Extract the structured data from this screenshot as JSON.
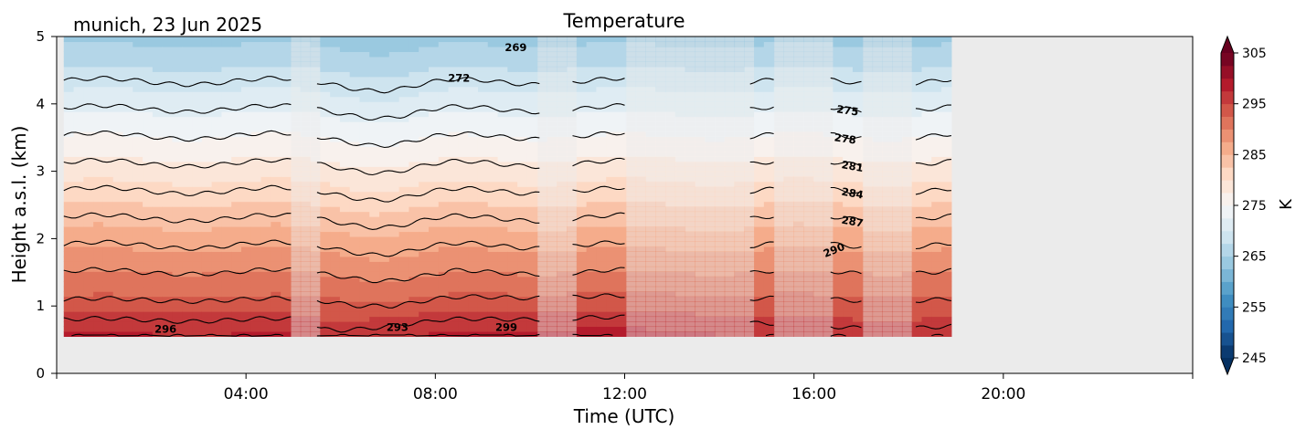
{
  "chart_data": {
    "type": "heatmap",
    "title": "Temperature",
    "subtitle": "munich, 23 Jun 2025",
    "xlabel": "Time (UTC)",
    "ylabel": "Height a.s.l. (km)",
    "xlim_hours": [
      0,
      24
    ],
    "ylim": [
      0,
      5
    ],
    "x_ticks": [
      {
        "value": 4,
        "label": "04:00"
      },
      {
        "value": 8,
        "label": "08:00"
      },
      {
        "value": 12,
        "label": "12:00"
      },
      {
        "value": 16,
        "label": "16:00"
      },
      {
        "value": 20,
        "label": "20:00"
      }
    ],
    "y_ticks": [
      0,
      1,
      2,
      3,
      4,
      5
    ],
    "data_height_range_km": [
      0.55,
      5.0
    ],
    "data_time_range_hours": [
      0.15,
      18.9
    ],
    "missing_color": "#ebebeb",
    "colorbar": {
      "label": "K",
      "range": [
        245,
        305
      ],
      "step": 2.5,
      "ticks": [
        245,
        255,
        265,
        275,
        285,
        295,
        305
      ],
      "colormap": "RdBu_r",
      "extend": "both"
    },
    "full_data_periods_hours": [
      [
        0.15,
        4.95
      ],
      [
        5.5,
        10.2
      ],
      [
        10.9,
        12.0
      ],
      [
        14.65,
        15.15
      ],
      [
        16.35,
        17.0
      ],
      [
        18.15,
        18.9
      ]
    ],
    "surface_temperature_K": 297,
    "lapse_rate_K_per_km": 7.4,
    "contour_interval_K": 3,
    "contour_labels": [
      {
        "value": 296,
        "time": 2.3,
        "height": 0.6,
        "angle": 0
      },
      {
        "value": 293,
        "time": 7.2,
        "height": 0.63,
        "angle": 0
      },
      {
        "value": 299,
        "time": 9.5,
        "height": 0.63,
        "angle": 0
      },
      {
        "value": 269,
        "time": 9.7,
        "height": 4.78,
        "angle": 0
      },
      {
        "value": 272,
        "time": 8.5,
        "height": 4.33,
        "angle": 0
      },
      {
        "value": 275,
        "time": 16.7,
        "height": 3.85,
        "angle": 8
      },
      {
        "value": 278,
        "time": 16.65,
        "height": 3.43,
        "angle": 8
      },
      {
        "value": 281,
        "time": 16.8,
        "height": 3.02,
        "angle": 10
      },
      {
        "value": 284,
        "time": 16.8,
        "height": 2.62,
        "angle": 10
      },
      {
        "value": 287,
        "time": 16.8,
        "height": 2.2,
        "angle": 10
      },
      {
        "value": 290,
        "time": 16.45,
        "height": 1.78,
        "angle": -22
      }
    ]
  }
}
